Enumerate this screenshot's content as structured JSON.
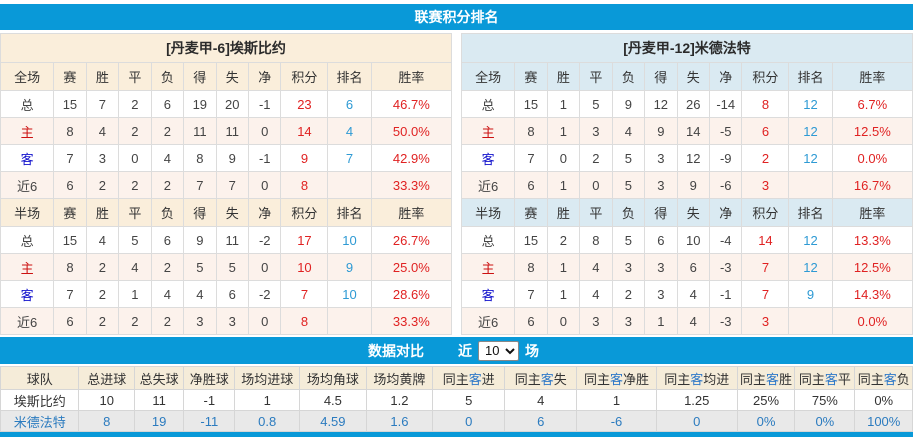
{
  "page": {
    "top_bar_title": "联赛积分排名",
    "compare_bar": {
      "title": "数据对比",
      "prefix": "近",
      "select_value": "10",
      "suffix": "场"
    }
  },
  "colors": {
    "accent_blue": "#0999d8",
    "left_header_bg": "#faeedb",
    "right_header_bg": "#daeaf2",
    "points_red": "#e02222",
    "rank_blue": "#2e9ad4",
    "home_red": "#cc1111",
    "away_blue": "#1111cc",
    "compare_away_row_blue": "#2b7bbf"
  },
  "teams": {
    "left": {
      "title": "[丹麦甲-6]埃斯比约",
      "full": {
        "header": [
          "全场",
          "赛",
          "胜",
          "平",
          "负",
          "得",
          "失",
          "净",
          "积分",
          "排名",
          "胜率"
        ],
        "rows": [
          [
            "总",
            "15",
            "7",
            "2",
            "6",
            "19",
            "20",
            "-1",
            "23",
            "6",
            "46.7%"
          ],
          [
            "主",
            "8",
            "4",
            "2",
            "2",
            "11",
            "11",
            "0",
            "14",
            "4",
            "50.0%"
          ],
          [
            "客",
            "7",
            "3",
            "0",
            "4",
            "8",
            "9",
            "-1",
            "9",
            "7",
            "42.9%"
          ],
          [
            "近6",
            "6",
            "2",
            "2",
            "2",
            "7",
            "7",
            "0",
            "8",
            "",
            "33.3%"
          ]
        ]
      },
      "half": {
        "header": [
          "半场",
          "赛",
          "胜",
          "平",
          "负",
          "得",
          "失",
          "净",
          "积分",
          "排名",
          "胜率"
        ],
        "rows": [
          [
            "总",
            "15",
            "4",
            "5",
            "6",
            "9",
            "11",
            "-2",
            "17",
            "10",
            "26.7%"
          ],
          [
            "主",
            "8",
            "2",
            "4",
            "2",
            "5",
            "5",
            "0",
            "10",
            "9",
            "25.0%"
          ],
          [
            "客",
            "7",
            "2",
            "1",
            "4",
            "4",
            "6",
            "-2",
            "7",
            "10",
            "28.6%"
          ],
          [
            "近6",
            "6",
            "2",
            "2",
            "2",
            "3",
            "3",
            "0",
            "8",
            "",
            "33.3%"
          ]
        ]
      }
    },
    "right": {
      "title": "[丹麦甲-12]米德法特",
      "full": {
        "header": [
          "全场",
          "赛",
          "胜",
          "平",
          "负",
          "得",
          "失",
          "净",
          "积分",
          "排名",
          "胜率"
        ],
        "rows": [
          [
            "总",
            "15",
            "1",
            "5",
            "9",
            "12",
            "26",
            "-14",
            "8",
            "12",
            "6.7%"
          ],
          [
            "主",
            "8",
            "1",
            "3",
            "4",
            "9",
            "14",
            "-5",
            "6",
            "12",
            "12.5%"
          ],
          [
            "客",
            "7",
            "0",
            "2",
            "5",
            "3",
            "12",
            "-9",
            "2",
            "12",
            "0.0%"
          ],
          [
            "近6",
            "6",
            "1",
            "0",
            "5",
            "3",
            "9",
            "-6",
            "3",
            "",
            "16.7%"
          ]
        ]
      },
      "half": {
        "header": [
          "半场",
          "赛",
          "胜",
          "平",
          "负",
          "得",
          "失",
          "净",
          "积分",
          "排名",
          "胜率"
        ],
        "rows": [
          [
            "总",
            "15",
            "2",
            "8",
            "5",
            "6",
            "10",
            "-4",
            "14",
            "12",
            "13.3%"
          ],
          [
            "主",
            "8",
            "1",
            "4",
            "3",
            "3",
            "6",
            "-3",
            "7",
            "12",
            "12.5%"
          ],
          [
            "客",
            "7",
            "1",
            "4",
            "2",
            "3",
            "4",
            "-1",
            "7",
            "9",
            "14.3%"
          ],
          [
            "近6",
            "6",
            "0",
            "3",
            "3",
            "1",
            "4",
            "-3",
            "3",
            "",
            "0.0%"
          ]
        ]
      }
    }
  },
  "compare": {
    "header": [
      "球队",
      "总进球",
      "总失球",
      "净胜球",
      "场均进球",
      "场均角球",
      "场均黄牌",
      "同主客进",
      "同主客失",
      "同主客净胜",
      "同主客均进",
      "同主客胜",
      "同主客平",
      "同主客负"
    ],
    "rows": [
      [
        "埃斯比约",
        "10",
        "11",
        "-1",
        "1",
        "4.5",
        "1.2",
        "5",
        "4",
        "1",
        "1.25",
        "25%",
        "75%",
        "0%"
      ],
      [
        "米德法特",
        "8",
        "19",
        "-11",
        "0.8",
        "4.59",
        "1.6",
        "0",
        "6",
        "-6",
        "0",
        "0%",
        "0%",
        "100%"
      ]
    ]
  }
}
